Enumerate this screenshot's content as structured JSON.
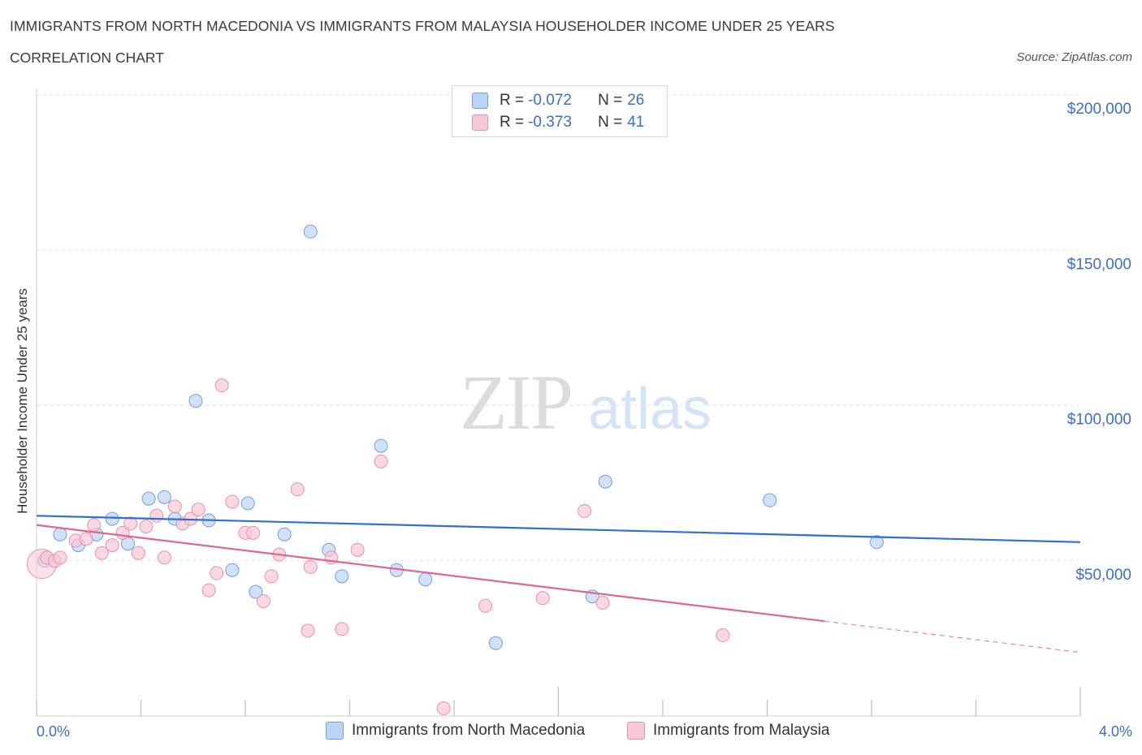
{
  "title": "IMMIGRANTS FROM NORTH MACEDONIA VS IMMIGRANTS FROM MALAYSIA HOUSEHOLDER INCOME UNDER 25 YEARS",
  "subtitle": "CORRELATION CHART",
  "source": "Source: ZipAtlas.com",
  "watermark": {
    "zip": "ZIP",
    "atlas": "atlas"
  },
  "legend": {
    "r_label": "R =",
    "n_label": "N =",
    "rows": [
      {
        "r": "-0.072",
        "n": "26"
      },
      {
        "r": "-0.373",
        "n": "41"
      }
    ]
  },
  "chart_data": {
    "type": "scatter",
    "title": "IMMIGRANTS FROM NORTH MACEDONIA VS IMMIGRANTS FROM MALAYSIA HOUSEHOLDER INCOME UNDER 25 YEARS",
    "xlabel": "",
    "ylabel": "Householder Income Under 25 years",
    "xlim": [
      0,
      4
    ],
    "ylim": [
      0,
      200000
    ],
    "x_tick_labels": [
      "0.0%",
      "4.0%"
    ],
    "y_ticks": [
      {
        "value": 50000,
        "label": "$50,000"
      },
      {
        "value": 100000,
        "label": "$100,000"
      },
      {
        "value": 150000,
        "label": "$150,000"
      },
      {
        "value": 200000,
        "label": "$200,000"
      }
    ],
    "colors": {
      "blue": "#6e9fe2",
      "blue_fill": "#bcd4f5",
      "blue_line": "#2f6fcf",
      "pink": "#ea8fab",
      "pink_fill": "#f9c8d6",
      "pink_line": "#e0678d"
    },
    "series": [
      {
        "name": "Immigrants from North Macedonia",
        "color": "blue",
        "trend": {
          "x": [
            0,
            4
          ],
          "y": [
            64500,
            56000
          ],
          "dashed_from": null
        },
        "points": [
          {
            "x": 0.03,
            "y": 50000
          },
          {
            "x": 0.09,
            "y": 58500
          },
          {
            "x": 0.16,
            "y": 55000
          },
          {
            "x": 0.23,
            "y": 58500
          },
          {
            "x": 0.29,
            "y": 63500
          },
          {
            "x": 0.35,
            "y": 55500
          },
          {
            "x": 0.43,
            "y": 70000
          },
          {
            "x": 0.49,
            "y": 70500
          },
          {
            "x": 0.53,
            "y": 63500
          },
          {
            "x": 0.61,
            "y": 101500
          },
          {
            "x": 0.66,
            "y": 63000
          },
          {
            "x": 0.75,
            "y": 47000
          },
          {
            "x": 0.81,
            "y": 68500
          },
          {
            "x": 0.84,
            "y": 40000
          },
          {
            "x": 0.95,
            "y": 58500
          },
          {
            "x": 1.05,
            "y": 156000
          },
          {
            "x": 1.12,
            "y": 53500
          },
          {
            "x": 1.17,
            "y": 45000
          },
          {
            "x": 1.32,
            "y": 87000
          },
          {
            "x": 1.38,
            "y": 47000
          },
          {
            "x": 1.49,
            "y": 44000
          },
          {
            "x": 1.76,
            "y": 23500
          },
          {
            "x": 2.13,
            "y": 38500
          },
          {
            "x": 2.18,
            "y": 75500
          },
          {
            "x": 2.81,
            "y": 69500
          },
          {
            "x": 3.22,
            "y": 56000
          }
        ]
      },
      {
        "name": "Immigrants from Malaysia",
        "color": "pink",
        "trend": {
          "x": [
            0,
            4
          ],
          "y": [
            61500,
            20500
          ],
          "dashed_from": 3.02
        },
        "points": [
          {
            "x": 0.02,
            "y": 49000
          },
          {
            "x": 0.04,
            "y": 51000
          },
          {
            "x": 0.07,
            "y": 50000
          },
          {
            "x": 0.09,
            "y": 51000
          },
          {
            "x": 0.15,
            "y": 56500
          },
          {
            "x": 0.19,
            "y": 57000
          },
          {
            "x": 0.22,
            "y": 61500
          },
          {
            "x": 0.25,
            "y": 52500
          },
          {
            "x": 0.29,
            "y": 55000
          },
          {
            "x": 0.33,
            "y": 59000
          },
          {
            "x": 0.36,
            "y": 62000
          },
          {
            "x": 0.39,
            "y": 52500
          },
          {
            "x": 0.42,
            "y": 61000
          },
          {
            "x": 0.46,
            "y": 64500
          },
          {
            "x": 0.49,
            "y": 51000
          },
          {
            "x": 0.53,
            "y": 67500
          },
          {
            "x": 0.56,
            "y": 62000
          },
          {
            "x": 0.59,
            "y": 63500
          },
          {
            "x": 0.62,
            "y": 66500
          },
          {
            "x": 0.66,
            "y": 40500
          },
          {
            "x": 0.69,
            "y": 46000
          },
          {
            "x": 0.71,
            "y": 106500
          },
          {
            "x": 0.75,
            "y": 69000
          },
          {
            "x": 0.8,
            "y": 59000
          },
          {
            "x": 0.83,
            "y": 59000
          },
          {
            "x": 0.87,
            "y": 37000
          },
          {
            "x": 0.9,
            "y": 45000
          },
          {
            "x": 0.93,
            "y": 52000
          },
          {
            "x": 1.0,
            "y": 73000
          },
          {
            "x": 1.04,
            "y": 27500
          },
          {
            "x": 1.05,
            "y": 48000
          },
          {
            "x": 1.13,
            "y": 51000
          },
          {
            "x": 1.17,
            "y": 28000
          },
          {
            "x": 1.23,
            "y": 53500
          },
          {
            "x": 1.32,
            "y": 82000
          },
          {
            "x": 1.56,
            "y": 2500
          },
          {
            "x": 1.72,
            "y": 35500
          },
          {
            "x": 1.94,
            "y": 38000
          },
          {
            "x": 2.1,
            "y": 66000
          },
          {
            "x": 2.17,
            "y": 36500
          },
          {
            "x": 2.63,
            "y": 26000
          }
        ]
      }
    ]
  }
}
